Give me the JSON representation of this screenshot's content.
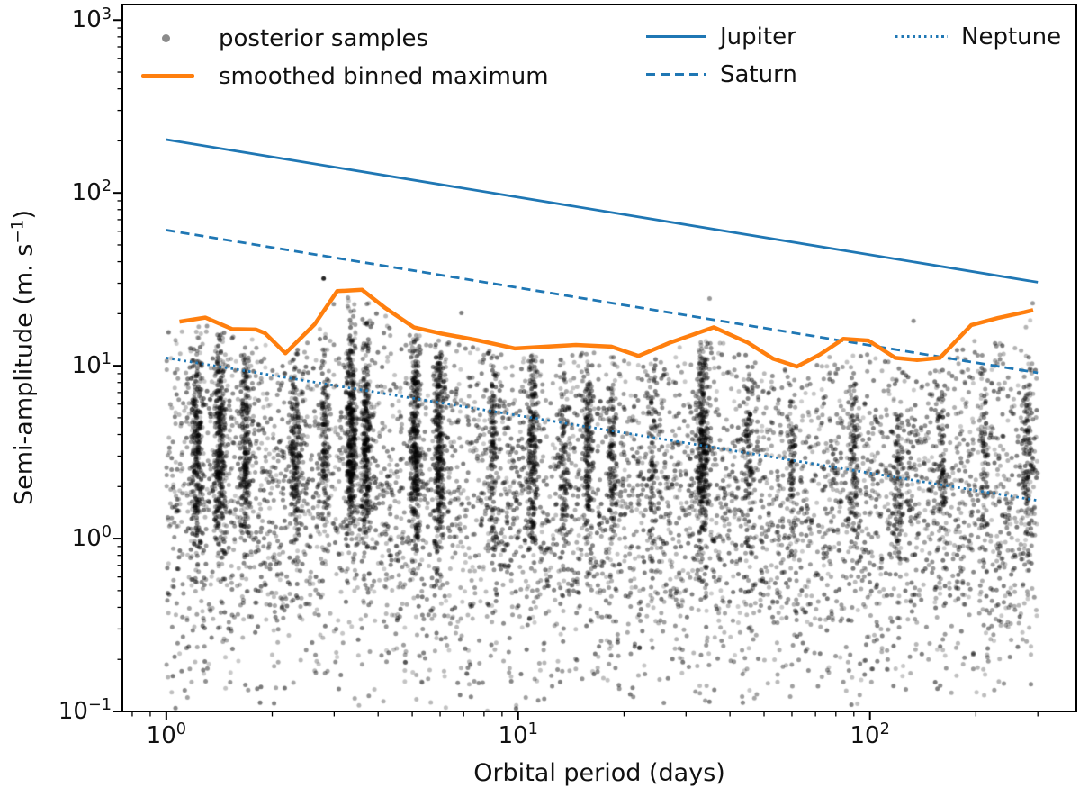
{
  "figure": {
    "background": "#ffffff",
    "text_color": "#111111"
  },
  "colors": {
    "planet_blue": "#1f77b4",
    "envelope_orange": "#ff7f0e",
    "scatter_black": "#000000",
    "axis_black": "#000000"
  },
  "axes": {
    "xlabel": "Orbital period (days)",
    "ylabel_pre": "Semi-amplitude (m. s",
    "ylabel_sup": "−1",
    "ylabel_post": ")",
    "xscale": "log",
    "yscale": "log",
    "xlim": [
      0.75,
      386
    ],
    "ylim": [
      0.1,
      1230
    ],
    "x_ticks": [
      {
        "base": "10",
        "exp": "0",
        "value": 1
      },
      {
        "base": "10",
        "exp": "1",
        "value": 10
      },
      {
        "base": "10",
        "exp": "2",
        "value": 100
      }
    ],
    "y_ticks": [
      {
        "base": "10",
        "exp": "3",
        "value": 1000
      },
      {
        "base": "10",
        "exp": "2",
        "value": 100
      },
      {
        "base": "10",
        "exp": "1",
        "value": 10
      },
      {
        "base": "10",
        "exp": "0",
        "value": 1
      },
      {
        "base": "10",
        "exp": "−1",
        "value": 0.1
      }
    ]
  },
  "legend": {
    "items": [
      {
        "label": "posterior samples",
        "marker": "gray-dot"
      },
      {
        "label": "smoothed binned maximum",
        "marker": "orange-solid-line"
      },
      {
        "label": "Jupiter",
        "marker": "blue-solid-line"
      },
      {
        "label": "Saturn",
        "marker": "blue-dashed-line"
      },
      {
        "label": "Neptune",
        "marker": "blue-dotted-line"
      }
    ]
  },
  "chart_data": {
    "type": "scatter",
    "title": "",
    "xlabel": "Orbital period (days)",
    "ylabel": "Semi-amplitude (m s^-1)",
    "xscale": "log",
    "yscale": "log",
    "xlim": [
      0.75,
      386
    ],
    "ylim": [
      0.1,
      1230
    ],
    "grid": false,
    "legend_position": "upper area inside axes, 3 columns, no frame",
    "series": [
      {
        "name": "Jupiter",
        "type": "line",
        "style": "solid",
        "color": "#1f77b4",
        "width": 2.8,
        "model": "K = 203.3 * P^(-1/3) m/s",
        "points": [
          [
            1,
            203.3
          ],
          [
            300,
            30.4
          ]
        ]
      },
      {
        "name": "Saturn",
        "type": "line",
        "style": "dashed",
        "color": "#1f77b4",
        "width": 2.8,
        "model": "K = 60.9 * P^(-1/3) m/s",
        "points": [
          [
            1,
            60.9
          ],
          [
            300,
            9.1
          ]
        ]
      },
      {
        "name": "Neptune",
        "type": "line",
        "style": "dotted",
        "color": "#1f77b4",
        "width": 2.8,
        "model": "K = 11.1 * P^(-1/3) m/s",
        "points": [
          [
            1,
            11.1
          ],
          [
            300,
            1.66
          ]
        ]
      },
      {
        "name": "smoothed binned maximum",
        "type": "line",
        "style": "solid",
        "color": "#ff7f0e",
        "width": 4.5,
        "points": [
          [
            1.09,
            18.0
          ],
          [
            1.29,
            19.0
          ],
          [
            1.54,
            16.3
          ],
          [
            1.8,
            16.2
          ],
          [
            1.91,
            15.4
          ],
          [
            2.18,
            11.8
          ],
          [
            2.64,
            17.4
          ],
          [
            3.06,
            27.0
          ],
          [
            3.6,
            27.5
          ],
          [
            4.2,
            21.5
          ],
          [
            5.05,
            16.7
          ],
          [
            6.0,
            15.4
          ],
          [
            7.6,
            14.1
          ],
          [
            9.8,
            12.6
          ],
          [
            14.6,
            13.2
          ],
          [
            18.4,
            12.9
          ],
          [
            22.0,
            11.4
          ],
          [
            27.0,
            13.6
          ],
          [
            36.0,
            16.7
          ],
          [
            45.0,
            13.6
          ],
          [
            53.0,
            11.0
          ],
          [
            62.0,
            9.9
          ],
          [
            72.0,
            11.6
          ],
          [
            84.0,
            14.3
          ],
          [
            99.0,
            14.0
          ],
          [
            118,
            11.1
          ],
          [
            136,
            10.8
          ],
          [
            158,
            11.1
          ],
          [
            194,
            17.2
          ],
          [
            231,
            18.9
          ],
          [
            275,
            20.4
          ],
          [
            291,
            21.0
          ]
        ]
      },
      {
        "name": "posterior samples",
        "type": "scatter",
        "color": "black, variable alpha",
        "marker_radius_px": 2.5,
        "n_points_approx": 9500,
        "seed": 1234567,
        "background": {
          "n": 5200,
          "P_range_days": [
            1,
            300
          ],
          "K_distribution": "log-uniform P; triangular in log10(K) over ~0.09-35 m/s with mode near 1.8 m/s, clipped below the smoothed binned maximum"
        },
        "clusters": [
          {
            "P": 1.22,
            "n": 280,
            "sp": 0.008,
            "mu": 0.52,
            "sk": 0.3
          },
          {
            "P": 1.42,
            "n": 320,
            "sp": 0.008,
            "mu": 0.55,
            "sk": 0.32
          },
          {
            "P": 1.68,
            "n": 230,
            "sp": 0.008,
            "mu": 0.5,
            "sk": 0.3
          },
          {
            "P": 2.33,
            "n": 200,
            "sp": 0.008,
            "mu": 0.52,
            "sk": 0.3
          },
          {
            "P": 2.82,
            "n": 130,
            "sp": 0.006,
            "mu": 0.55,
            "sk": 0.28
          },
          {
            "P": 3.35,
            "n": 380,
            "sp": 0.007,
            "mu": 0.6,
            "sk": 0.32
          },
          {
            "P": 3.7,
            "n": 280,
            "sp": 0.006,
            "mu": 0.58,
            "sk": 0.3
          },
          {
            "P": 5.1,
            "n": 330,
            "sp": 0.007,
            "mu": 0.55,
            "sk": 0.33
          },
          {
            "P": 5.95,
            "n": 300,
            "sp": 0.007,
            "mu": 0.55,
            "sk": 0.33
          },
          {
            "P": 8.5,
            "n": 130,
            "sp": 0.006,
            "mu": 0.45,
            "sk": 0.3
          },
          {
            "P": 11.0,
            "n": 220,
            "sp": 0.007,
            "mu": 0.5,
            "sk": 0.32
          },
          {
            "P": 13.5,
            "n": 110,
            "sp": 0.006,
            "mu": 0.45,
            "sk": 0.28
          },
          {
            "P": 15.8,
            "n": 170,
            "sp": 0.006,
            "mu": 0.48,
            "sk": 0.3
          },
          {
            "P": 18.5,
            "n": 120,
            "sp": 0.006,
            "mu": 0.45,
            "sk": 0.28
          },
          {
            "P": 24.0,
            "n": 90,
            "sp": 0.006,
            "mu": 0.45,
            "sk": 0.28
          },
          {
            "P": 33.5,
            "n": 330,
            "sp": 0.008,
            "mu": 0.55,
            "sk": 0.33
          },
          {
            "P": 45.0,
            "n": 90,
            "sp": 0.006,
            "mu": 0.45,
            "sk": 0.28
          },
          {
            "P": 60.0,
            "n": 80,
            "sp": 0.006,
            "mu": 0.4,
            "sk": 0.28
          },
          {
            "P": 90.0,
            "n": 110,
            "sp": 0.007,
            "mu": 0.45,
            "sk": 0.3
          },
          {
            "P": 120,
            "n": 90,
            "sp": 0.006,
            "mu": 0.4,
            "sk": 0.28
          },
          {
            "P": 160,
            "n": 80,
            "sp": 0.006,
            "mu": 0.4,
            "sk": 0.28
          },
          {
            "P": 210,
            "n": 70,
            "sp": 0.006,
            "mu": 0.4,
            "sk": 0.28
          },
          {
            "P": 280,
            "n": 130,
            "sp": 0.007,
            "mu": 0.45,
            "sk": 0.3
          }
        ],
        "outliers": [
          [
            2.8,
            32,
            0.85
          ],
          [
            6.9,
            20.2,
            0.5
          ],
          [
            35,
            24.5,
            0.4
          ],
          [
            133,
            18.2,
            0.45
          ],
          [
            290,
            23,
            0.4
          ]
        ]
      }
    ]
  }
}
